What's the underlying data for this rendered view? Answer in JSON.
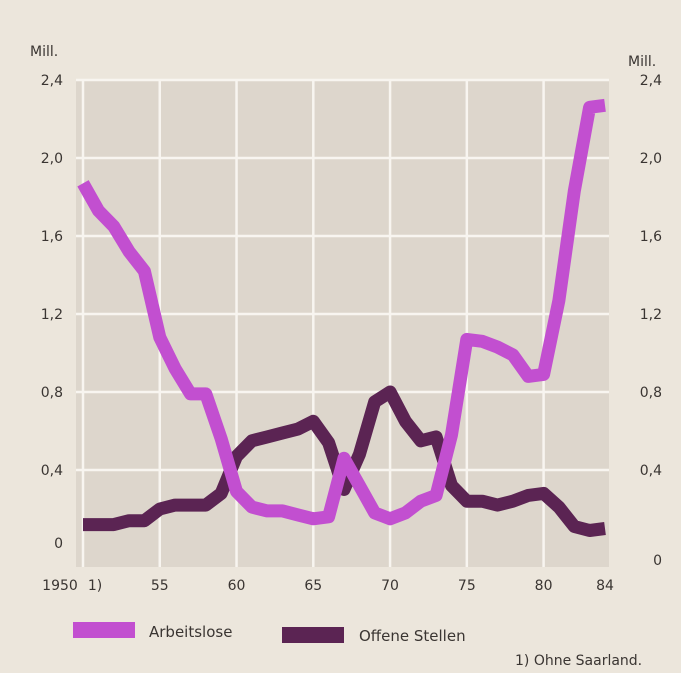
{
  "chart_data": {
    "type": "line",
    "ylabel_left": "Mill.",
    "ylabel_right": "Mill.",
    "x_tick_labels": [
      "1950",
      "1)",
      "55",
      "60",
      "65",
      "70",
      "75",
      "80",
      "84"
    ],
    "y_tick_labels_left": [
      "0",
      "0,4",
      "0,8",
      "1,2",
      "1,6",
      "2,0",
      "2,4"
    ],
    "y_tick_labels_right": [
      "0",
      "0,4",
      "0,8",
      "1,2",
      "1,6",
      "2,0",
      "2,4"
    ],
    "xlim": [
      1950,
      1984
    ],
    "ylim_left": [
      0,
      2.4
    ],
    "ylim_right": [
      0,
      2.4
    ],
    "grid": true,
    "legend_placement": "bottom",
    "series": [
      {
        "name": "Arbeitslose",
        "color": "#c24fd0",
        "points": [
          [
            1950,
            1.87
          ],
          [
            1951,
            1.73
          ],
          [
            1952,
            1.65
          ],
          [
            1953,
            1.52
          ],
          [
            1954,
            1.42
          ],
          [
            1955,
            1.08
          ],
          [
            1956,
            0.92
          ],
          [
            1957,
            0.79
          ],
          [
            1958,
            0.79
          ],
          [
            1959,
            0.56
          ],
          [
            1960,
            0.29
          ],
          [
            1961,
            0.21
          ],
          [
            1962,
            0.19
          ],
          [
            1963,
            0.19
          ],
          [
            1964,
            0.17
          ],
          [
            1965,
            0.15
          ],
          [
            1966,
            0.16
          ],
          [
            1967,
            0.46
          ],
          [
            1968,
            0.32
          ],
          [
            1969,
            0.18
          ],
          [
            1970,
            0.15
          ],
          [
            1971,
            0.18
          ],
          [
            1972,
            0.24
          ],
          [
            1973,
            0.27
          ],
          [
            1974,
            0.58
          ],
          [
            1975,
            1.07
          ],
          [
            1976,
            1.06
          ],
          [
            1977,
            1.03
          ],
          [
            1978,
            0.99
          ],
          [
            1979,
            0.88
          ],
          [
            1980,
            0.89
          ],
          [
            1981,
            1.27
          ],
          [
            1982,
            1.83
          ],
          [
            1983,
            2.26
          ],
          [
            1984,
            2.27
          ]
        ]
      },
      {
        "name": "Offene Stellen",
        "color": "#5b2453",
        "points": [
          [
            1950,
            0.12
          ],
          [
            1951,
            0.12
          ],
          [
            1952,
            0.12
          ],
          [
            1953,
            0.14
          ],
          [
            1954,
            0.14
          ],
          [
            1955,
            0.2
          ],
          [
            1956,
            0.22
          ],
          [
            1957,
            0.22
          ],
          [
            1958,
            0.22
          ],
          [
            1959,
            0.28
          ],
          [
            1960,
            0.47
          ],
          [
            1961,
            0.55
          ],
          [
            1962,
            0.57
          ],
          [
            1963,
            0.59
          ],
          [
            1964,
            0.61
          ],
          [
            1965,
            0.65
          ],
          [
            1966,
            0.54
          ],
          [
            1967,
            0.3
          ],
          [
            1968,
            0.48
          ],
          [
            1969,
            0.75
          ],
          [
            1970,
            0.8
          ],
          [
            1971,
            0.65
          ],
          [
            1972,
            0.55
          ],
          [
            1973,
            0.57
          ],
          [
            1974,
            0.32
          ],
          [
            1975,
            0.24
          ],
          [
            1976,
            0.24
          ],
          [
            1977,
            0.22
          ],
          [
            1978,
            0.24
          ],
          [
            1979,
            0.27
          ],
          [
            1980,
            0.28
          ],
          [
            1981,
            0.21
          ],
          [
            1982,
            0.11
          ],
          [
            1983,
            0.09
          ],
          [
            1984,
            0.1
          ]
        ]
      }
    ]
  },
  "footnote": "1) Ohne Saarland."
}
